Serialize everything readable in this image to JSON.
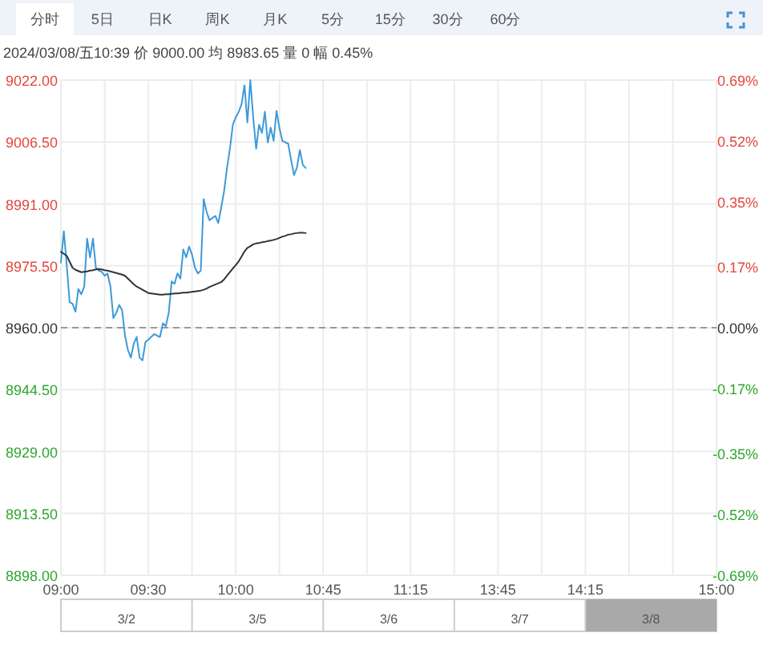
{
  "chart_data": {
    "type": "line",
    "subtitle": "2024/03/08/五10:39 价 9000.00 均 8983.65 量 0 幅 0.45%",
    "categories": [
      "09:00",
      null,
      null,
      null,
      null,
      null,
      null,
      null,
      null,
      null,
      null,
      null,
      null,
      null,
      null,
      null,
      null,
      null,
      null,
      null,
      null,
      null,
      null,
      null,
      null,
      null,
      null,
      null,
      null,
      null,
      "09:30",
      null,
      null,
      null,
      null,
      null,
      null,
      null,
      null,
      null,
      null,
      null,
      null,
      null,
      null,
      null,
      null,
      null,
      null,
      null,
      null,
      null,
      null,
      null,
      null,
      null,
      null,
      null,
      null,
      null,
      "10:00",
      null,
      null,
      null,
      null,
      null,
      null,
      null,
      null,
      null,
      null,
      null,
      null,
      null,
      null,
      null,
      null,
      null,
      null,
      null,
      null,
      null,
      null,
      null,
      null,
      null,
      null,
      null,
      null,
      null,
      "10:45",
      null,
      null,
      null,
      null,
      null,
      null,
      null,
      null,
      null,
      null,
      null,
      null,
      null,
      null,
      null,
      null,
      null,
      null,
      null,
      null,
      null,
      null,
      null,
      null,
      null,
      null,
      null,
      null,
      null,
      "11:15",
      null,
      null,
      null,
      null,
      null,
      null,
      null,
      null,
      null,
      null,
      null,
      null,
      null,
      null,
      null,
      null,
      null,
      null,
      null,
      null,
      null,
      null,
      null,
      null,
      null,
      null,
      null,
      null,
      null,
      "13:45",
      null,
      null,
      null,
      null,
      null,
      null,
      null,
      null,
      null,
      null,
      null,
      null,
      null,
      null,
      null,
      null,
      null,
      null,
      null,
      null,
      null,
      null,
      null,
      null,
      null,
      null,
      null,
      null,
      null,
      "14:15",
      null,
      null,
      null,
      null,
      null,
      null,
      null,
      null,
      null,
      null,
      null,
      null,
      null,
      null,
      null,
      null,
      null,
      null,
      null,
      null,
      null,
      null,
      null,
      null,
      null,
      null,
      null,
      null,
      null,
      null,
      null,
      null,
      null,
      null,
      null,
      null,
      null,
      null,
      null,
      null,
      null,
      null,
      null,
      null,
      "15:00"
    ],
    "series": [
      {
        "color": "#3d9ad8",
        "values": [
          8976.3,
          8984.2,
          8975.6,
          8966.4,
          8966.0,
          8964.0,
          8969.7,
          8968.4,
          8970.3,
          8982.3,
          8977.6,
          8982.3,
          8975.0,
          8974.3,
          8974.0,
          8973.0,
          8973.6,
          8970.3,
          8962.4,
          8963.7,
          8965.7,
          8964.4,
          8958.0,
          8954.4,
          8952.5,
          8956.0,
          8957.7,
          8952.5,
          8951.8,
          8956.4,
          8957.0,
          8957.7,
          8958.4,
          8958.0,
          8957.7,
          8961.1,
          8960.4,
          8963.7,
          8971.6,
          8971.0,
          8973.6,
          8972.3,
          8979.6,
          8977.6,
          8980.3,
          8978.3,
          8975.0,
          8973.6,
          8974.3,
          8992.2,
          8989.0,
          8986.9,
          8987.5,
          8988.0,
          8986.2,
          8990.0,
          8994.2,
          9000.0,
          9004.8,
          9010.8,
          9012.7,
          9014.0,
          9016.0,
          9020.7,
          9011.4,
          9022.0,
          9012.7,
          9004.8,
          9010.8,
          9008.8,
          9014.1,
          9006.4,
          9010.1,
          9006.8,
          9014.3,
          9010.0,
          9006.8,
          9006.4,
          9006.1,
          9002.0,
          8998.2,
          9000.1,
          9004.5,
          9000.8,
          9000.0,
          null,
          null,
          null,
          null,
          null,
          null,
          null,
          null,
          null,
          null,
          null,
          null,
          null,
          null,
          null,
          null,
          null,
          null,
          null,
          null,
          null,
          null,
          null,
          null,
          null,
          null,
          null,
          null,
          null,
          null,
          null,
          null,
          null,
          null,
          null,
          null,
          null,
          null,
          null,
          null,
          null,
          null,
          null,
          null,
          null,
          null,
          null,
          null,
          null,
          null,
          null,
          null,
          null,
          null,
          null,
          null,
          null,
          null,
          null,
          null,
          null,
          null,
          null,
          null,
          null,
          null,
          null,
          null,
          null,
          null,
          null,
          null,
          null,
          null,
          null,
          null,
          null,
          null,
          null,
          null,
          null,
          null,
          null,
          null,
          null,
          null,
          null,
          null,
          null,
          null,
          null,
          null,
          null,
          null,
          null,
          null,
          null,
          null,
          null,
          null,
          null,
          null,
          null,
          null,
          null,
          null,
          null,
          null,
          null,
          null,
          null,
          null,
          null,
          null,
          null,
          null,
          null,
          null,
          null,
          null,
          null,
          null,
          null,
          null,
          null,
          null,
          null,
          null,
          null,
          null,
          null,
          null,
          null,
          null,
          null,
          null,
          null,
          null,
          null,
          null,
          null
        ]
      },
      {
        "color": "#333333",
        "values": [
          8979.0,
          8978.5,
          8978.0,
          8976.5,
          8975.0,
          8974.5,
          8974.2,
          8973.9,
          8974.0,
          8974.1,
          8974.3,
          8974.4,
          8974.6,
          8974.7,
          8974.6,
          8974.4,
          8974.3,
          8974.1,
          8973.9,
          8973.7,
          8973.5,
          8973.3,
          8973.0,
          8972.3,
          8971.6,
          8970.9,
          8970.3,
          8969.9,
          8969.5,
          8969.1,
          8968.7,
          8968.6,
          8968.5,
          8968.4,
          8968.3,
          8968.3,
          8968.4,
          8968.4,
          8968.5,
          8968.6,
          8968.6,
          8968.7,
          8968.8,
          8968.8,
          8968.9,
          8969.0,
          8969.1,
          8969.2,
          8969.3,
          8969.5,
          8969.8,
          8970.2,
          8970.5,
          8970.8,
          8971.1,
          8971.4,
          8972.1,
          8973.0,
          8973.9,
          8974.8,
          8975.7,
          8976.6,
          8977.8,
          8979.1,
          8980.0,
          8980.4,
          8980.9,
          8981.1,
          8981.2,
          8981.4,
          8981.5,
          8981.7,
          8981.8,
          8982.0,
          8982.2,
          8982.5,
          8982.8,
          8983.0,
          8983.3,
          8983.4,
          8983.6,
          8983.7,
          8983.8,
          8983.8,
          8983.7,
          null,
          null,
          null,
          null,
          null,
          null,
          null,
          null,
          null,
          null,
          null,
          null,
          null,
          null,
          null,
          null,
          null,
          null,
          null,
          null,
          null,
          null,
          null,
          null,
          null,
          null,
          null,
          null,
          null,
          null,
          null,
          null,
          null,
          null,
          null,
          null,
          null,
          null,
          null,
          null,
          null,
          null,
          null,
          null,
          null,
          null,
          null,
          null,
          null,
          null,
          null,
          null,
          null,
          null,
          null,
          null,
          null,
          null,
          null,
          null,
          null,
          null,
          null,
          null,
          null,
          null,
          null,
          null,
          null,
          null,
          null,
          null,
          null,
          null,
          null,
          null,
          null,
          null,
          null,
          null,
          null,
          null,
          null,
          null,
          null,
          null,
          null,
          null,
          null,
          null,
          null,
          null,
          null,
          null,
          null,
          null,
          null,
          null,
          null,
          null,
          null,
          null,
          null,
          null,
          null,
          null,
          null,
          null,
          null,
          null,
          null,
          null,
          null,
          null,
          null,
          null,
          null,
          null,
          null,
          null,
          null,
          null,
          null,
          null,
          null,
          null,
          null,
          null,
          null,
          null,
          null,
          null,
          null,
          null,
          null,
          null,
          null,
          null,
          null,
          null,
          null
        ]
      }
    ],
    "ylim": [
      8898,
      9022
    ],
    "yticks": [
      {
        "value": 9022,
        "label": "9022.00"
      },
      {
        "value": 9006.5,
        "label": "9006.50"
      },
      {
        "value": 8991,
        "label": "8991.00"
      },
      {
        "value": 8975.5,
        "label": "8975.50"
      },
      {
        "value": 8960,
        "label": "8960.00"
      },
      {
        "value": 8944.5,
        "label": "8944.50"
      },
      {
        "value": 8929,
        "label": "8929.00"
      },
      {
        "value": 8913.5,
        "label": "8913.50"
      },
      {
        "value": 8898,
        "label": "8898.00"
      }
    ],
    "y2lim": [
      -0.69,
      0.69
    ],
    "y2ticks": [
      {
        "value": 0.69,
        "label": "0.69%"
      },
      {
        "value": 0.52,
        "label": "0.52%"
      },
      {
        "value": 0.35,
        "label": "0.35%"
      },
      {
        "value": 0.17,
        "label": "0.17%"
      },
      {
        "value": 0,
        "label": "0.00%"
      },
      {
        "value": -0.17,
        "label": "-0.17%"
      },
      {
        "value": -0.35,
        "label": "-0.35%"
      },
      {
        "value": -0.52,
        "label": "-0.52%"
      },
      {
        "value": -0.69,
        "label": "-0.69%"
      }
    ],
    "ref_lines": [
      {
        "axis": "y",
        "value": 8960,
        "color": "#999999",
        "line_style": "dashed"
      }
    ],
    "grid": true,
    "line_style": "solid",
    "annotations": [
      "分时",
      "5日",
      "日K",
      "周K",
      "月K",
      "5分",
      "15分",
      "30分",
      "60分",
      "3/2",
      "3/5",
      "3/6",
      "3/7",
      "3/8"
    ]
  }
}
